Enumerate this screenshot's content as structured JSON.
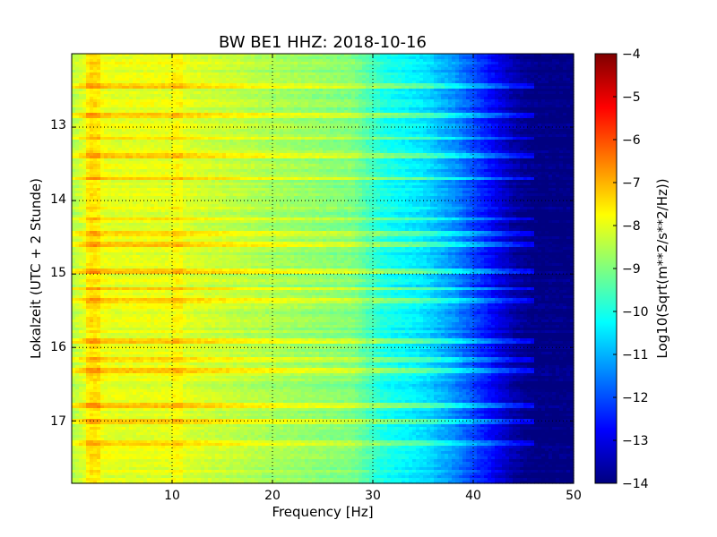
{
  "chart_data": {
    "type": "heatmap",
    "title": "BW BE1 HHZ: 2018-10-16",
    "xlabel": "Frequency [Hz]",
    "ylabel": "Lokalzeit (UTC + 2 Stunde)",
    "xlim": [
      0,
      50
    ],
    "ylim": [
      12.0,
      17.85
    ],
    "y_inverted": true,
    "x_ticks": [
      "10",
      "20",
      "30",
      "40",
      "50"
    ],
    "y_ticks": [
      "13",
      "14",
      "15",
      "16",
      "17"
    ],
    "grid": true,
    "colorbar": {
      "label": "Log10(Sqrt(m**2/s**2/Hz))",
      "range": [
        -14,
        -4
      ],
      "colormap": "jet",
      "ticks": [
        "−4",
        "−5",
        "−6",
        "−7",
        "−8",
        "−9",
        "−10",
        "−11",
        "−12",
        "−13",
        "−14"
      ]
    },
    "spectrum_profile": {
      "frequency_hz": [
        0,
        2,
        4,
        10,
        20,
        28,
        31,
        35,
        38,
        42,
        44,
        46,
        50
      ],
      "log_amplitude": [
        -8.5,
        -7.8,
        -8.0,
        -8.0,
        -8.6,
        -9.0,
        -10.0,
        -10.5,
        -11.3,
        -12.8,
        -13.6,
        -14.0,
        -14.0
      ]
    },
    "horizontal_bands_hours": [
      12.45,
      12.85,
      13.15,
      13.4,
      13.7,
      14.25,
      14.45,
      14.6,
      14.95,
      15.2,
      15.35,
      15.9,
      16.18,
      16.3,
      16.8,
      17.0,
      17.3
    ]
  }
}
